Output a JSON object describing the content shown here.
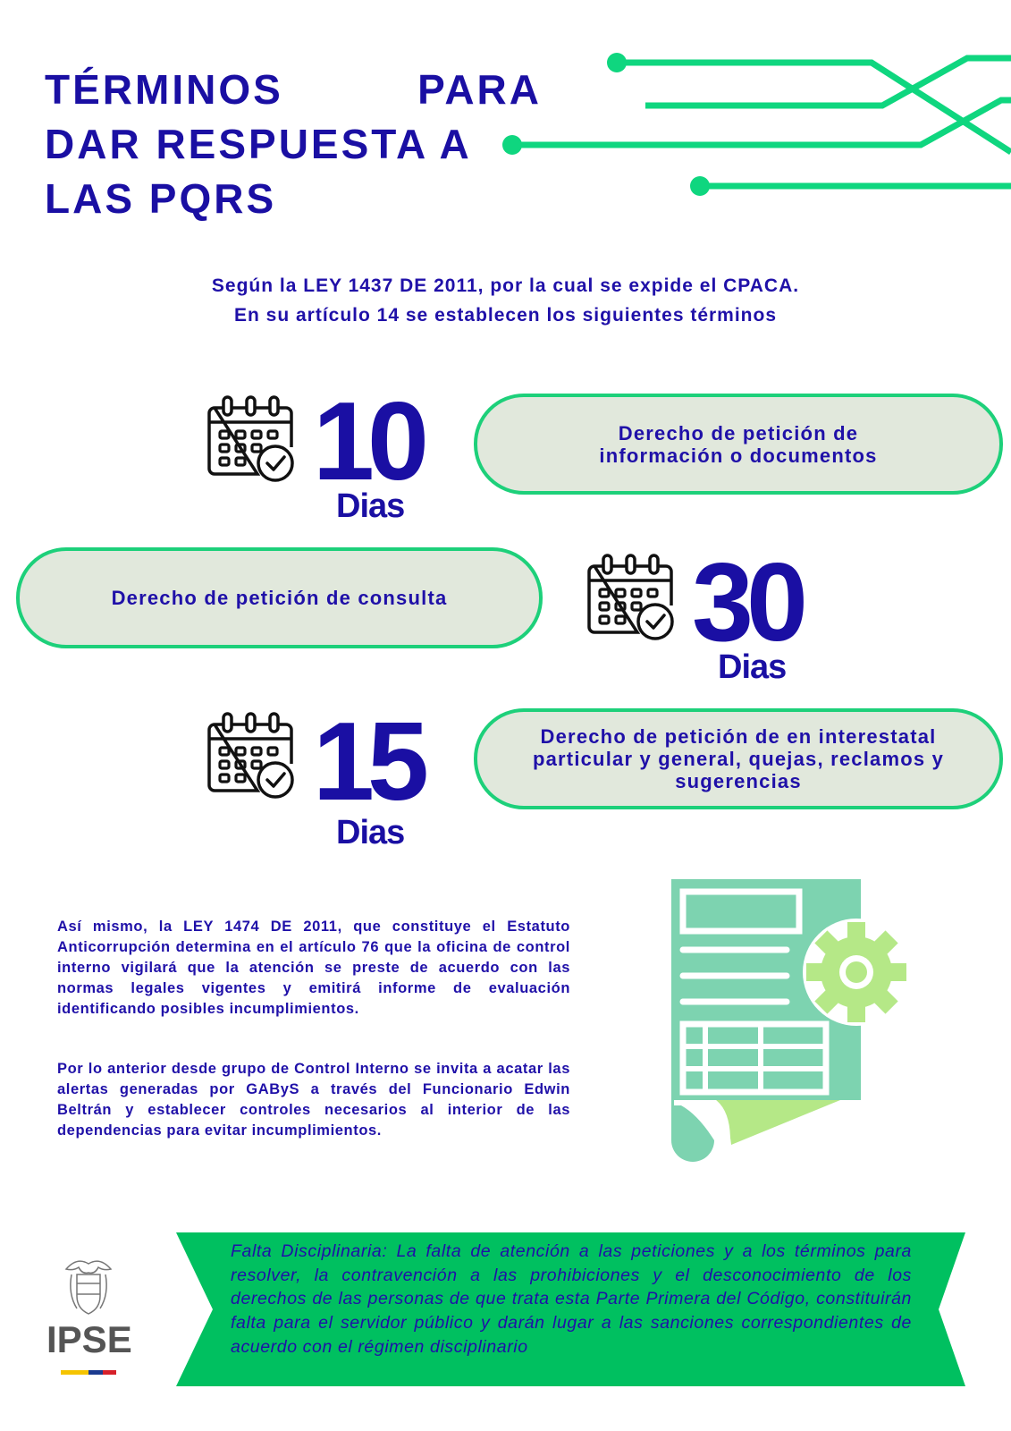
{
  "title": {
    "line1_left": "TÉRMINOS",
    "line1_right": "PARA",
    "line2": "DAR RESPUESTA A",
    "line3": "LAS PQRS"
  },
  "intro": {
    "line1": "Según la LEY 1437 DE 2011, por la cual se expide el CPACA.",
    "line2": "En su artículo 14 se establecen los siguientes términos"
  },
  "terms": [
    {
      "number": "10",
      "unit": "Dias",
      "description": "Derecho de petición de información o documentos",
      "icon": "calendar-check-icon"
    },
    {
      "number": "30",
      "unit": "Dias",
      "description": "Derecho de petición de consulta",
      "icon": "calendar-check-icon"
    },
    {
      "number": "15",
      "unit": "Dias",
      "description": "Derecho de petición de en interestatal particular y general, quejas, reclamos y sugerencias",
      "icon": "calendar-check-icon"
    }
  ],
  "body": {
    "paragraph1": "Así mismo, la LEY 1474 DE 2011, que constituye el Estatuto Anticorrupción determina en el artículo 76 que la oficina de control interno vigilará que la atención se preste de acuerdo con las normas legales vigentes y emitirá informe de evaluación identificando posibles incumplimientos.",
    "paragraph2": "Por lo anterior desde grupo de Control Interno se invita a acatar las alertas generadas por GAByS a través del Funcionario Edwin Beltrán y establecer controles necesarios al interior de las dependencias para evitar incumplimientos."
  },
  "banner": {
    "text": "Falta Disciplinaria: La falta de atención a las peticiones y a los términos para resolver, la contravención a las prohibiciones y el desconocimiento de los derechos de las personas de que trata esta Parte Primera del Código, constituirán falta para el servidor público y darán lugar a las sanciones correspondientes de acuerdo con el régimen disciplinario"
  },
  "logo": {
    "text": "IPSE"
  },
  "colors": {
    "primary_text": "#1a0fa3",
    "accent_green": "#0fd67f",
    "bubble_border": "#1dd07a",
    "bubble_fill": "#e1e8dc",
    "banner_green": "#00c060",
    "doc_green": "#7dd3b0",
    "gear_green": "#b5e887"
  }
}
